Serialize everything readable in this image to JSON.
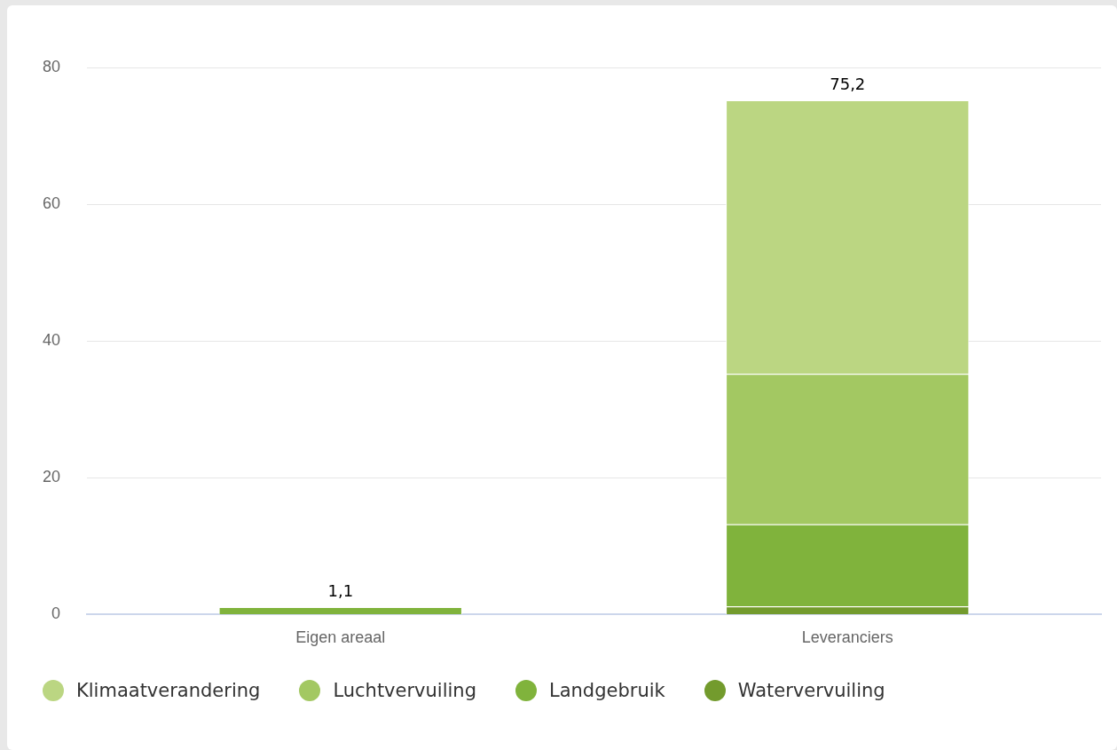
{
  "chart_data": {
    "type": "bar",
    "stacked": true,
    "categories": [
      "Eigen areaal",
      "Leveranciers"
    ],
    "series": [
      {
        "name": "Watervervuiling",
        "color": "#739b2d",
        "values": [
          0,
          1.2
        ]
      },
      {
        "name": "Landgebruik",
        "color": "#80b33c",
        "values": [
          1.1,
          12
        ]
      },
      {
        "name": "Luchtvervuiling",
        "color": "#a3c862",
        "values": [
          0,
          22
        ]
      },
      {
        "name": "Klimaatverandering",
        "color": "#bbd682",
        "values": [
          0,
          40
        ]
      }
    ],
    "ylim": [
      0,
      80
    ],
    "yticks": [
      0,
      20,
      40,
      60,
      80
    ],
    "grid": "y",
    "legend": "bottom left",
    "totals": [
      "1,1",
      "75,2"
    ]
  }
}
